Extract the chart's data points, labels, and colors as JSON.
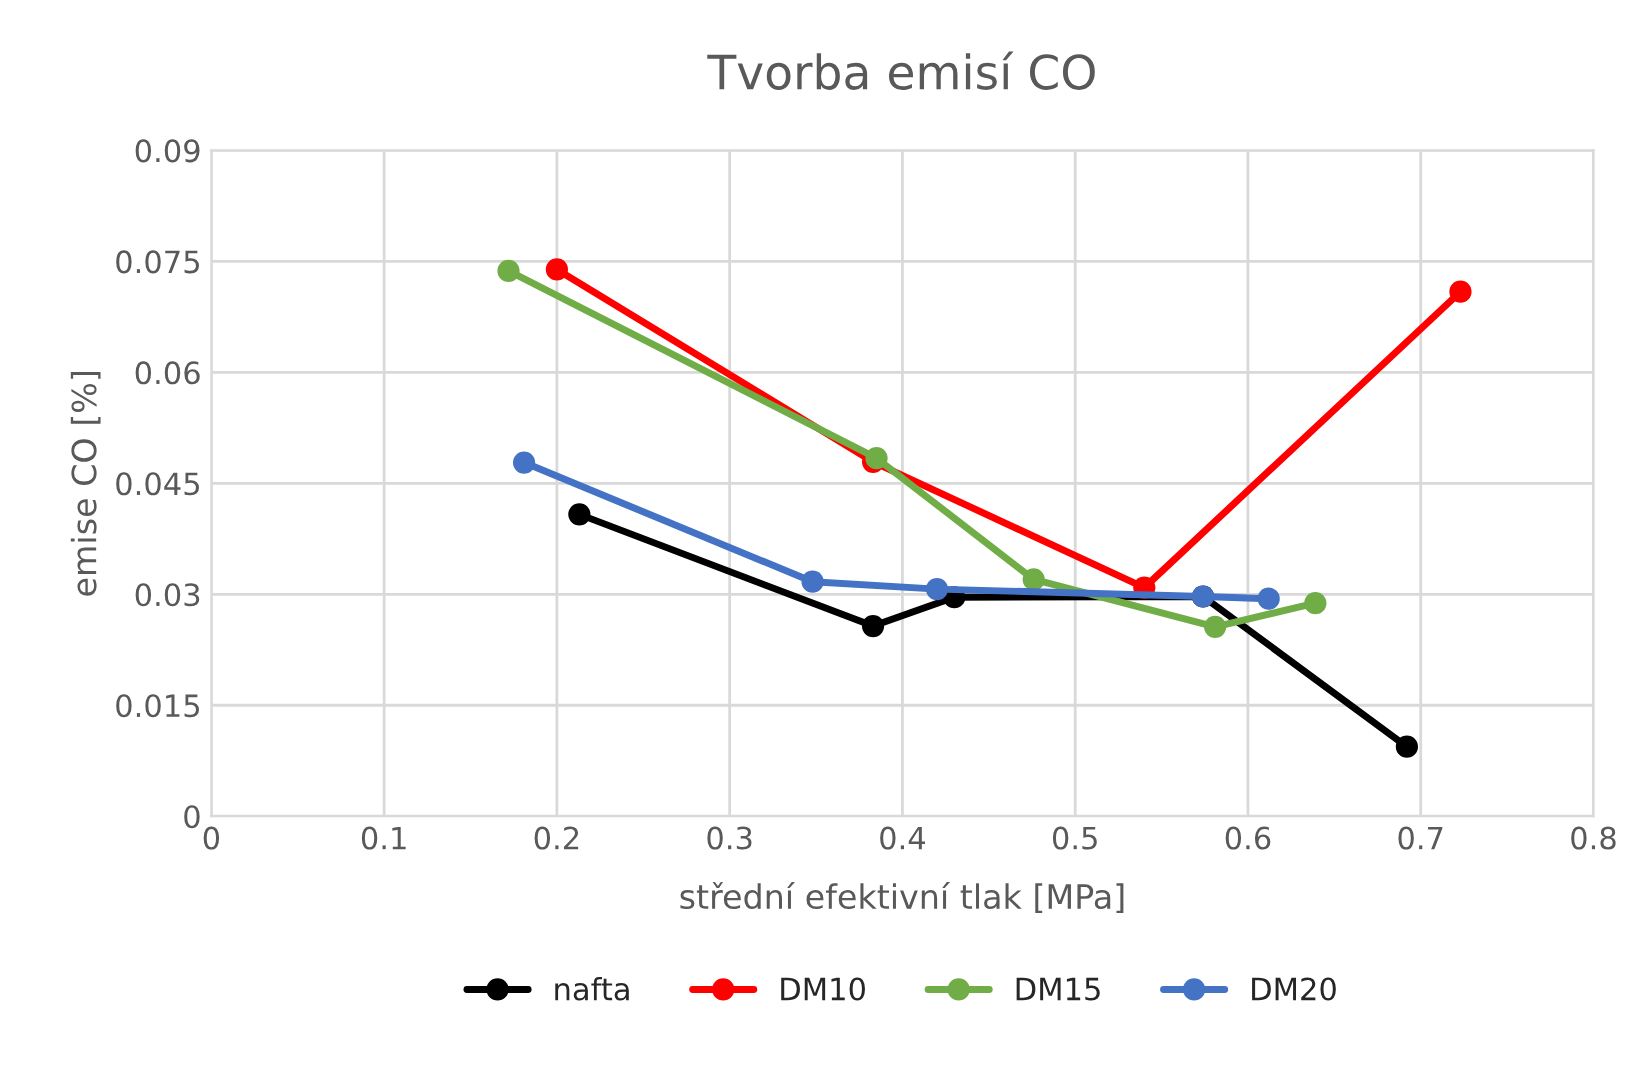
{
  "chart_data": {
    "type": "line",
    "title": "Tvorba emisí CO",
    "xlabel": "střední efektivní tlak [MPa]",
    "ylabel": "emise CO [%]",
    "xlim": [
      0,
      0.8
    ],
    "xticks": [
      0,
      0.1,
      0.2,
      0.3,
      0.4,
      0.5,
      0.6,
      0.7,
      0.8
    ],
    "ylim": [
      0,
      0.09
    ],
    "yticks": [
      0,
      0.015,
      0.03,
      0.045,
      0.06,
      0.075,
      0.09
    ],
    "grid": true,
    "legend": "bottom",
    "marker": "circle",
    "line_style": "solid",
    "series": [
      {
        "name": "nafta",
        "color": "#000000",
        "x": [
          0.213,
          0.383,
          0.43,
          0.574,
          0.692
        ],
        "values": [
          0.0408,
          0.0257,
          0.0296,
          0.0297,
          0.0094
        ]
      },
      {
        "name": "DM10",
        "color": "#ff0000",
        "x": [
          0.2,
          0.383,
          0.54,
          0.723
        ],
        "values": [
          0.0739,
          0.0479,
          0.0309,
          0.0709
        ]
      },
      {
        "name": "DM15",
        "color": "#70ad47",
        "x": [
          0.172,
          0.385,
          0.476,
          0.581,
          0.639
        ],
        "values": [
          0.0737,
          0.0484,
          0.032,
          0.0256,
          0.0288
        ]
      },
      {
        "name": "DM20",
        "color": "#4472c4",
        "x": [
          0.181,
          0.348,
          0.42,
          0.574,
          0.612
        ],
        "values": [
          0.0478,
          0.0317,
          0.0307,
          0.0297,
          0.0294
        ]
      }
    ]
  }
}
